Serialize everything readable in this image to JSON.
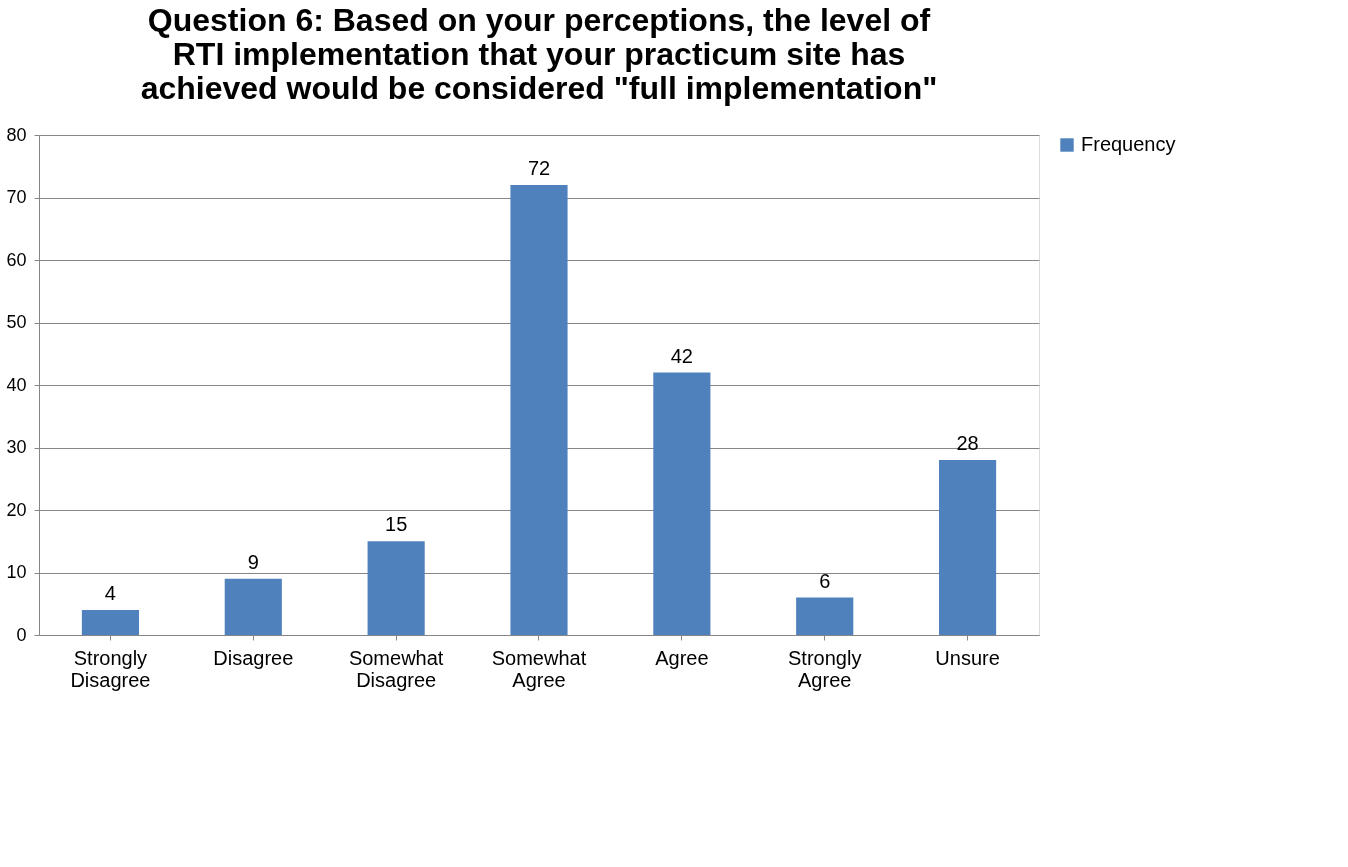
{
  "chart_data": {
    "type": "bar",
    "title": "Question 6: Based on your perceptions, the level of RTI implementation that your practicum site has achieved would be considered \"full implementation\"",
    "categories": [
      "Strongly Disagree",
      "Disagree",
      "Somewhat Disagree",
      "Somewhat Agree",
      "Agree",
      "Strongly Agree",
      "Unsure"
    ],
    "series": [
      {
        "name": "Frequency",
        "color": "#4f81bd",
        "values": [
          4,
          9,
          15,
          72,
          42,
          6,
          28
        ]
      }
    ],
    "ylim": [
      0,
      80
    ],
    "yticks": [
      0,
      10,
      20,
      30,
      40,
      50,
      60,
      70,
      80
    ],
    "grid": "y",
    "legend": "right",
    "data_labels": true
  }
}
